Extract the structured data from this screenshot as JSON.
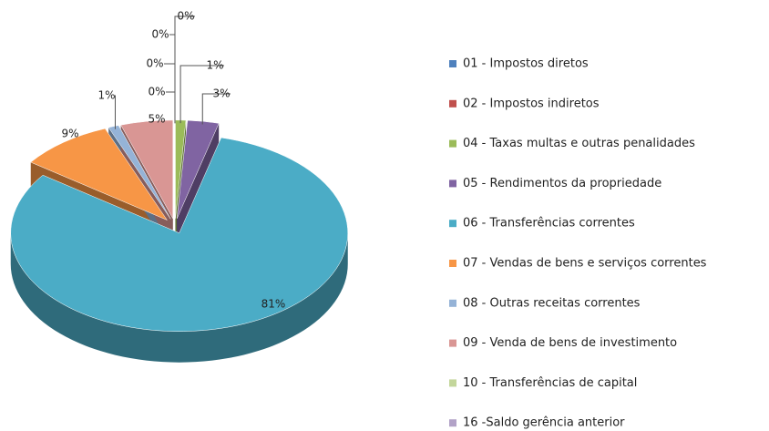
{
  "chart_data": {
    "type": "pie3d",
    "categories": [
      "01 - Impostos diretos",
      "02 - Impostos indiretos",
      "04 - Taxas multas e outras penalidades",
      "05 - Rendimentos da propriedade",
      "06 - Transferências correntes",
      "07 - Vendas de bens e serviços correntes",
      "08 - Outras receitas correntes",
      "09 - Venda de bens de investimento",
      "10 - Transferências de capital",
      "16 -Saldo gerência anterior"
    ],
    "values": [
      0,
      0,
      1,
      3,
      81,
      9,
      1,
      5,
      0,
      0
    ],
    "value_labels": [
      "0%",
      "0%",
      "1%",
      "3%",
      "81%",
      "9%",
      "1%",
      "5%",
      "0%",
      "0%"
    ],
    "colors": [
      "#4f81bd",
      "#c0504d",
      "#9bbb59",
      "#8064a2",
      "#4bacc6",
      "#f79646",
      "#95b3d7",
      "#d99694",
      "#c3d69b",
      "#b2a2c7"
    ]
  }
}
